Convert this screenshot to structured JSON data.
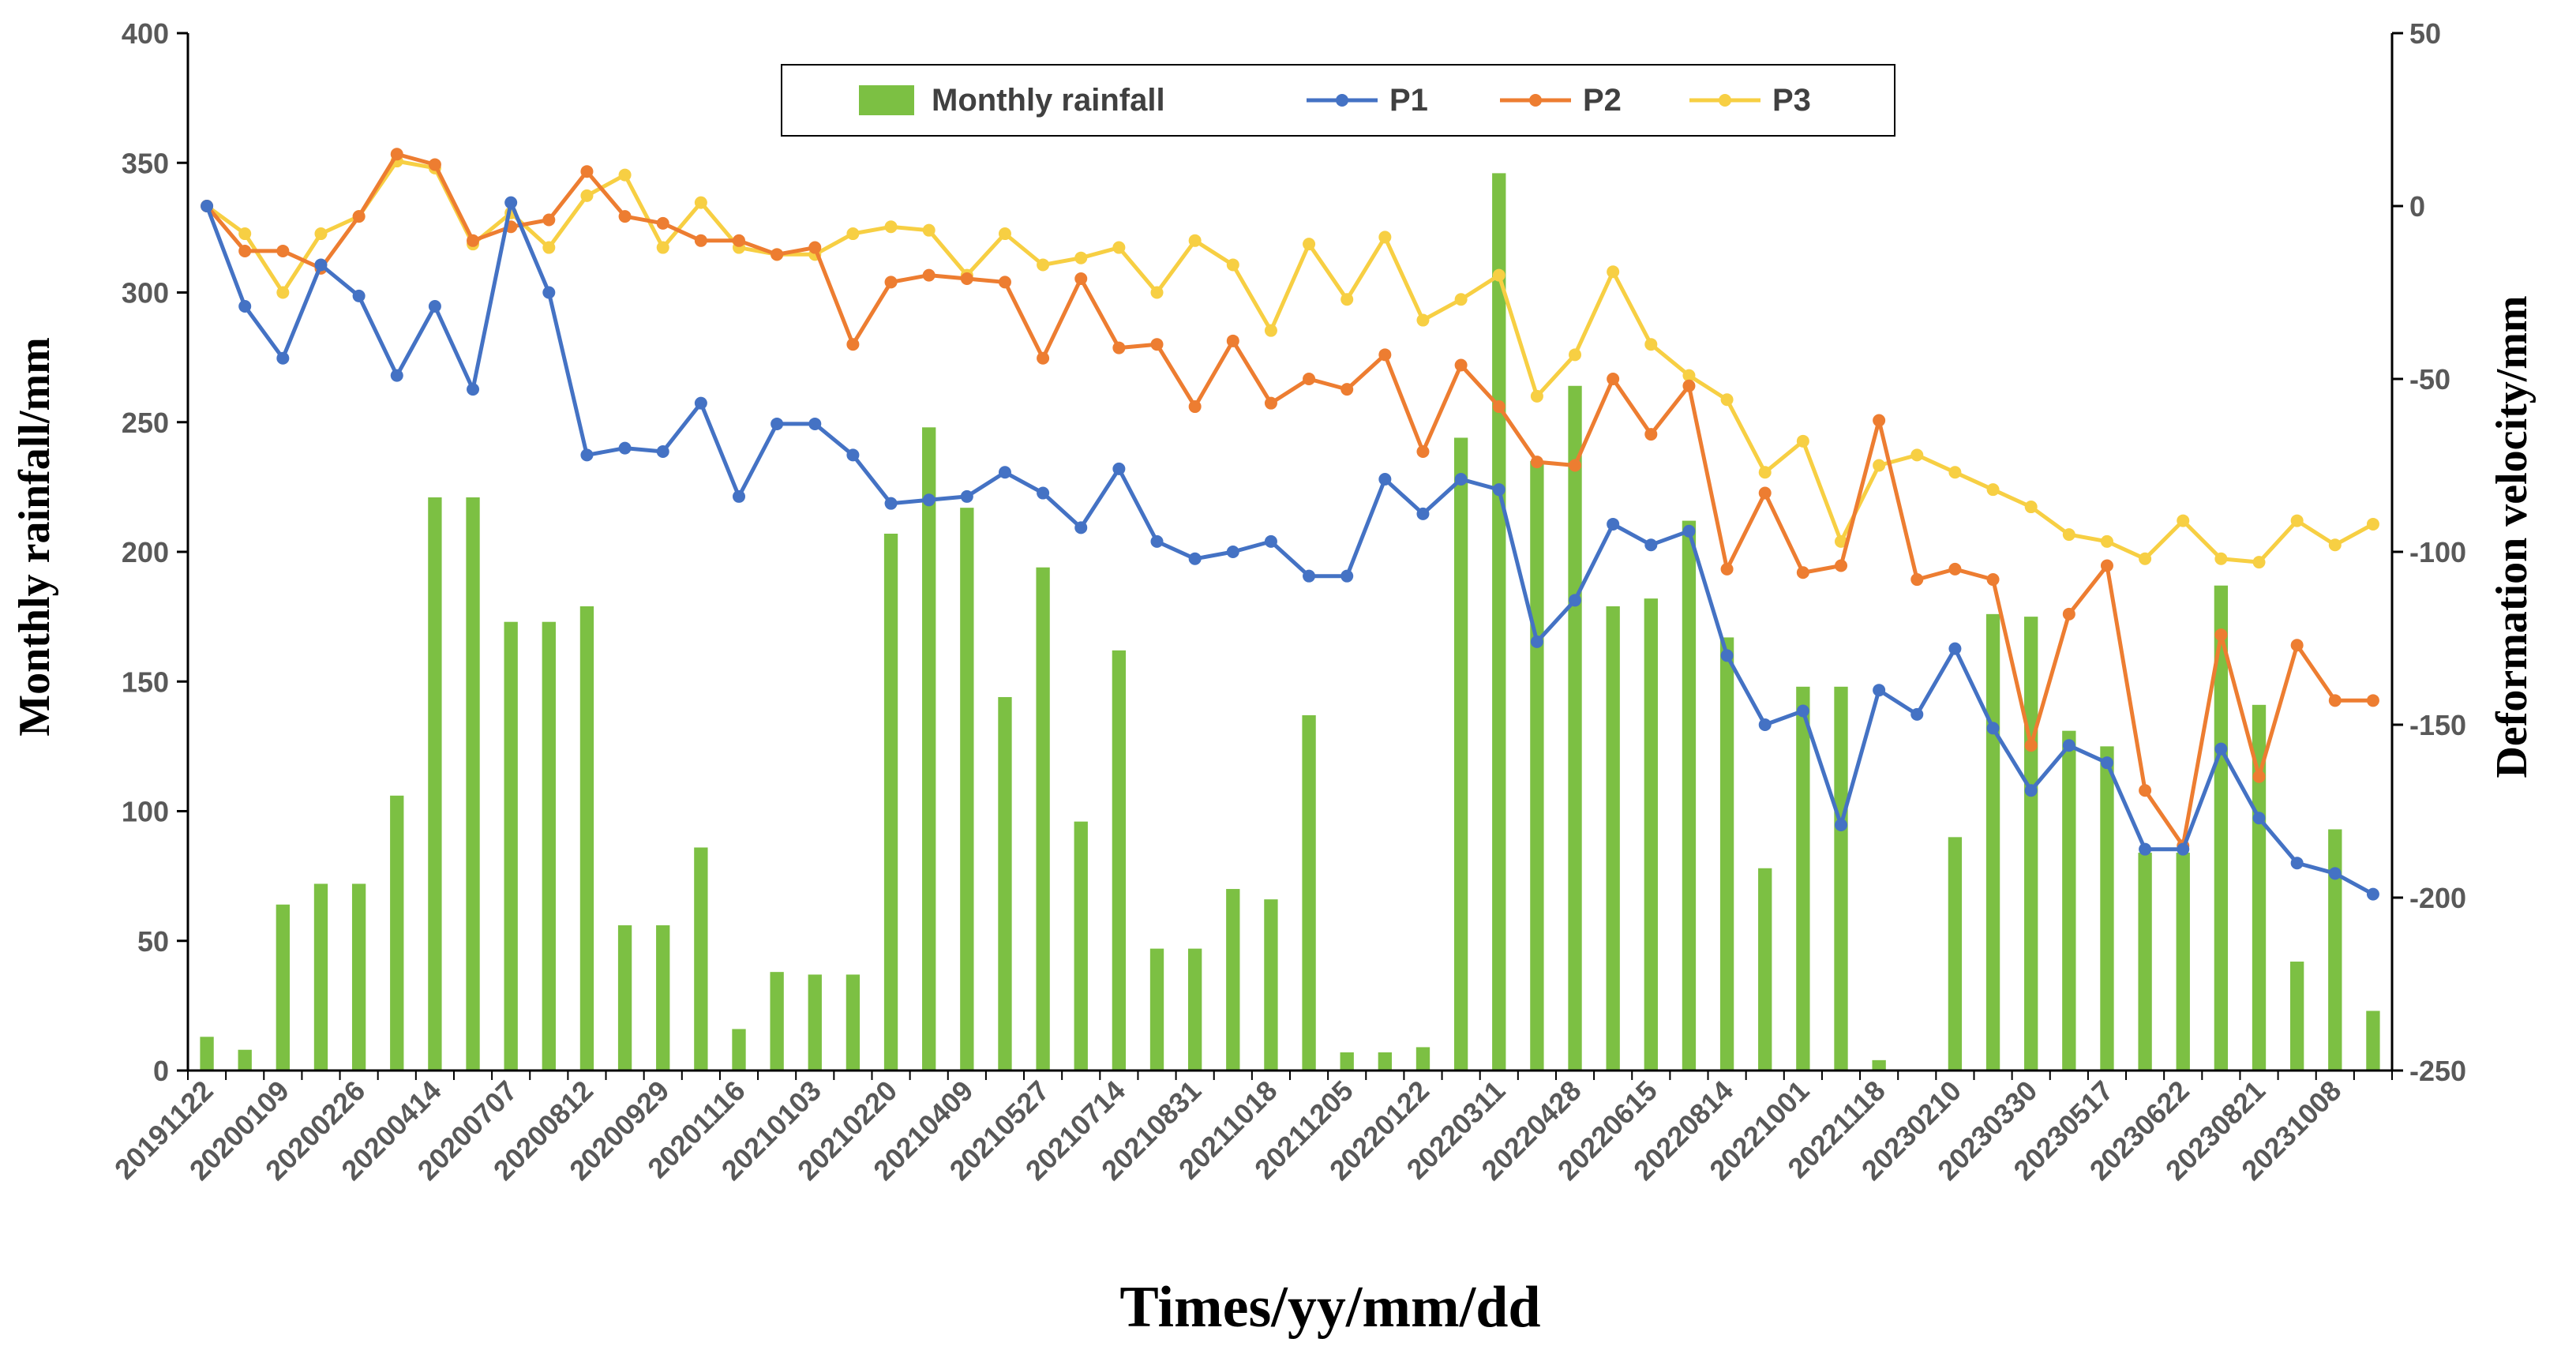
{
  "colors": {
    "rainfall": "#7cc043",
    "P1": "#4472c4",
    "P2": "#ed7d31",
    "P3": "#f7cf43",
    "axis": "#000000",
    "tick_text": "#595959"
  },
  "chart_data": {
    "type": "bar+line",
    "title": "",
    "xlabel": "Times/yy/mm/dd",
    "ylabel": "Monthly rainfall/mm",
    "y2label": "Deformation velocity/mm",
    "ylim": [
      0,
      400
    ],
    "y2lim": [
      -250,
      50
    ],
    "yticks": [
      "0",
      "50",
      "100",
      "150",
      "200",
      "250",
      "300",
      "350",
      "400"
    ],
    "y2ticks": [
      "-250",
      "-200",
      "-150",
      "-100",
      "-50",
      "0",
      "50"
    ],
    "x_tick_labels": [
      "20191122",
      "20200109",
      "20200226",
      "20200414",
      "20200707",
      "20200812",
      "20200929",
      "20201116",
      "20210103",
      "20210220",
      "20210409",
      "20210527",
      "20210714",
      "20210831",
      "20211018",
      "20211205",
      "20220122",
      "20220311",
      "20220428",
      "20220615",
      "20220814",
      "20221001",
      "20221118",
      "20230210",
      "20230330",
      "20230517",
      "20230622",
      "20230821",
      "20231008"
    ],
    "legend": {
      "position": "top-center",
      "entries": [
        "Monthly rainfall",
        "P1",
        "P2",
        "P3"
      ]
    },
    "rainfall": [
      13,
      8,
      64,
      72,
      72,
      106,
      221,
      221,
      173,
      173,
      179,
      56,
      56,
      86,
      16,
      38,
      37,
      37,
      207,
      248,
      217,
      144,
      194,
      96,
      162,
      47,
      47,
      70,
      66,
      137,
      7,
      7,
      9,
      244,
      346,
      235,
      264,
      179,
      182,
      212,
      167,
      78,
      148,
      148,
      4,
      0,
      90,
      176,
      175,
      131,
      125,
      84,
      84,
      187,
      141,
      42,
      93,
      23
    ],
    "series": [
      {
        "name": "P1",
        "values": [
          0,
          -29,
          -44,
          -17,
          -26,
          -49,
          -29,
          -53,
          1,
          -25,
          -72,
          -70,
          -71,
          -57,
          -84,
          -63,
          -63,
          -72,
          -86,
          -85,
          -84,
          -77,
          -83,
          -93,
          -76,
          -97,
          -102,
          -100,
          -97,
          -107,
          -107,
          -79,
          -89,
          -79,
          -82,
          -126,
          -114,
          -92,
          -98,
          -94,
          -130,
          -150,
          -146,
          -179,
          -140,
          -147,
          -128,
          -151,
          -169,
          -156,
          -161,
          -186,
          -186,
          -157,
          -177,
          -190,
          -193,
          -199
        ]
      },
      {
        "name": "P2",
        "values": [
          0,
          -13,
          -13,
          -18,
          -3,
          15,
          12,
          -10,
          -6,
          -4,
          10,
          -3,
          -5,
          -10,
          -10,
          -14,
          -12,
          -40,
          -22,
          -20,
          -21,
          -22,
          -44,
          -21,
          -41,
          -40,
          -58,
          -39,
          -57,
          -50,
          -53,
          -43,
          -71,
          -46,
          -58,
          -74,
          -75,
          -50,
          -66,
          -52,
          -105,
          -83,
          -106,
          -104,
          -62,
          -108,
          -105,
          -108,
          -156,
          -118,
          -104,
          -169,
          -185,
          -124,
          -165,
          -127,
          -143,
          -143
        ]
      },
      {
        "name": "P3",
        "values": [
          0,
          -8,
          -25,
          -8,
          -3,
          13,
          11,
          -11,
          -2,
          -12,
          3,
          9,
          -12,
          1,
          -12,
          -14,
          -14,
          -8,
          -6,
          -7,
          -20,
          -8,
          -17,
          -15,
          -12,
          -25,
          -10,
          -17,
          -36,
          -11,
          -27,
          -9,
          -33,
          -27,
          -20,
          -55,
          -43,
          -19,
          -40,
          -49,
          -56,
          -77,
          -68,
          -97,
          -75,
          -72,
          -77,
          -82,
          -87,
          -95,
          -97,
          -102,
          -91,
          -102,
          -103,
          -91,
          -98,
          -92
        ]
      }
    ]
  }
}
